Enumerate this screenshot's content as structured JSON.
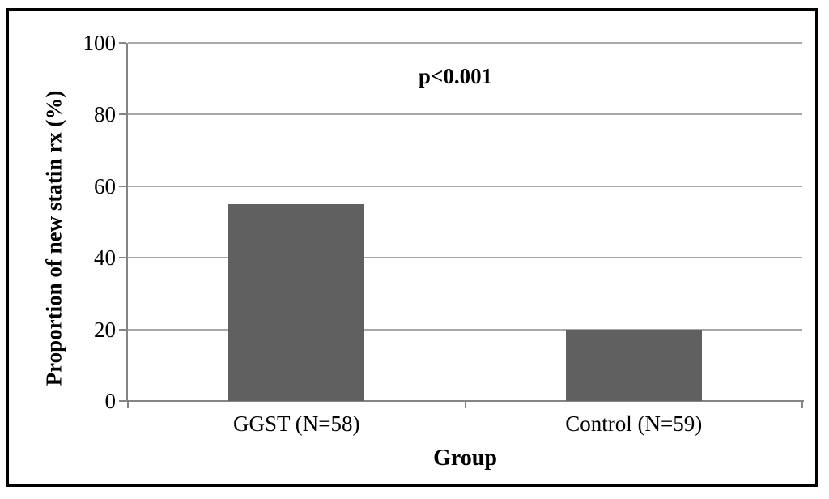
{
  "chart_data": {
    "type": "bar",
    "categories": [
      "GGST (N=58)",
      "Control (N=59)"
    ],
    "values": [
      55,
      20
    ],
    "title": "",
    "annotation": "p<0.001",
    "xlabel": "Group",
    "ylabel": "Proportion of new statin rx (%)",
    "ylim": [
      0,
      100
    ],
    "yticks": [
      0,
      20,
      40,
      60,
      80,
      100
    ],
    "grid": true,
    "legend_position": "none",
    "colors": {
      "bar": "#606060",
      "gridline": "#a9a9a9",
      "axis": "#858585",
      "text": "#000000",
      "frame_border": "#000000",
      "background": "#ffffff"
    }
  }
}
